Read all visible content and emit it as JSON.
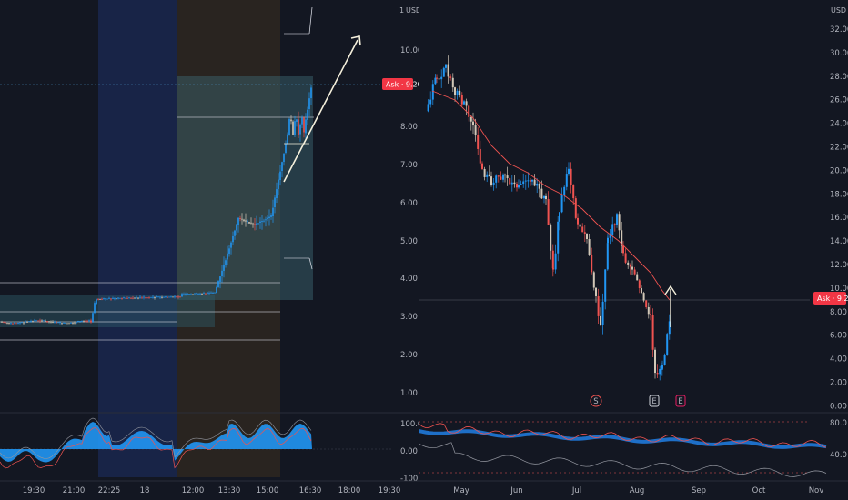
{
  "left_chart": {
    "currency": "USD",
    "price_scale_top": "1",
    "price_ticks": [
      "10.00",
      "9.00",
      "8.00",
      "7.00",
      "6.00",
      "5.00",
      "4.00",
      "3.00",
      "2.00",
      "1.00"
    ],
    "ask_label": "Ask",
    "ask_value": "9.20",
    "time_ticks": [
      "19:30",
      "21:00",
      "22:25",
      "18",
      "12:00",
      "13:30",
      "15:00",
      "16:30",
      "18:00",
      "19:30"
    ],
    "osc_ticks": [
      "100.00",
      "0.00",
      "-100.00"
    ]
  },
  "right_chart": {
    "currency": "USD",
    "price_ticks": [
      "32.00",
      "30.00",
      "28.00",
      "26.00",
      "24.00",
      "22.00",
      "20.00",
      "18.00",
      "16.00",
      "14.00",
      "12.00",
      "10.00",
      "8.00",
      "6.00",
      "4.00",
      "2.00",
      "0.00"
    ],
    "ask_label": "Ask",
    "ask_value": "9.20",
    "time_ticks": [
      "May",
      "Jun",
      "Jul",
      "Aug",
      "Sep",
      "Oct",
      "Nov"
    ],
    "event_markers": [
      "S",
      "E",
      "E"
    ],
    "osc_ticks": [
      "80.0",
      "40.0"
    ]
  },
  "colors": {
    "background": "#131722",
    "bull": "#2196f3",
    "bear": "#ef5350",
    "neutral_candle": "#d1c7b7",
    "ask_badge": "#f23645",
    "arrow": "#f5f0dc",
    "session_blue": "#1b2a54",
    "session_brown": "#2c2620"
  }
}
